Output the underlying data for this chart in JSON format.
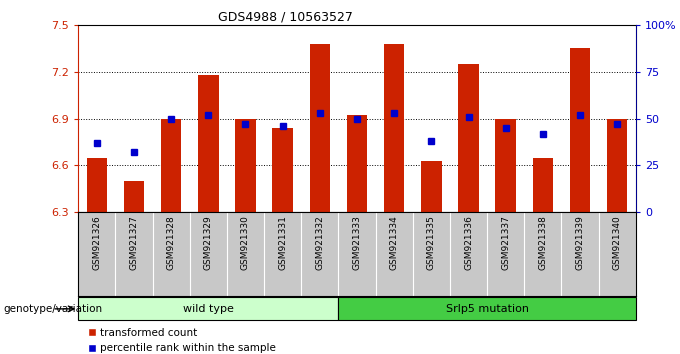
{
  "title": "GDS4988 / 10563527",
  "samples": [
    "GSM921326",
    "GSM921327",
    "GSM921328",
    "GSM921329",
    "GSM921330",
    "GSM921331",
    "GSM921332",
    "GSM921333",
    "GSM921334",
    "GSM921335",
    "GSM921336",
    "GSM921337",
    "GSM921338",
    "GSM921339",
    "GSM921340"
  ],
  "transformed_count": [
    6.65,
    6.5,
    6.9,
    7.18,
    6.9,
    6.84,
    7.38,
    6.92,
    7.38,
    6.63,
    7.25,
    6.9,
    6.65,
    7.35,
    6.9
  ],
  "percentile_rank": [
    37,
    32,
    50,
    52,
    47,
    46,
    53,
    50,
    53,
    38,
    51,
    45,
    42,
    52,
    47
  ],
  "ymin": 6.3,
  "ymax": 7.5,
  "yticks": [
    6.3,
    6.6,
    6.9,
    7.2,
    7.5
  ],
  "right_yticks": [
    0,
    25,
    50,
    75,
    100
  ],
  "right_yticklabels": [
    "0",
    "25",
    "50",
    "75",
    "100%"
  ],
  "bar_color": "#cc2200",
  "dot_color": "#0000cc",
  "wild_type_indices": [
    0,
    1,
    2,
    3,
    4,
    5,
    6
  ],
  "mutation_indices": [
    7,
    8,
    9,
    10,
    11,
    12,
    13,
    14
  ],
  "wild_type_label": "wild type",
  "mutation_label": "Srlp5 mutation",
  "group_label": "genotype/variation",
  "legend_bar_label": "transformed count",
  "legend_dot_label": "percentile rank within the sample",
  "xtick_bg": "#c8c8c8",
  "wild_type_bg": "#ccffcc",
  "mutation_bg": "#44cc44",
  "bar_width": 0.55
}
